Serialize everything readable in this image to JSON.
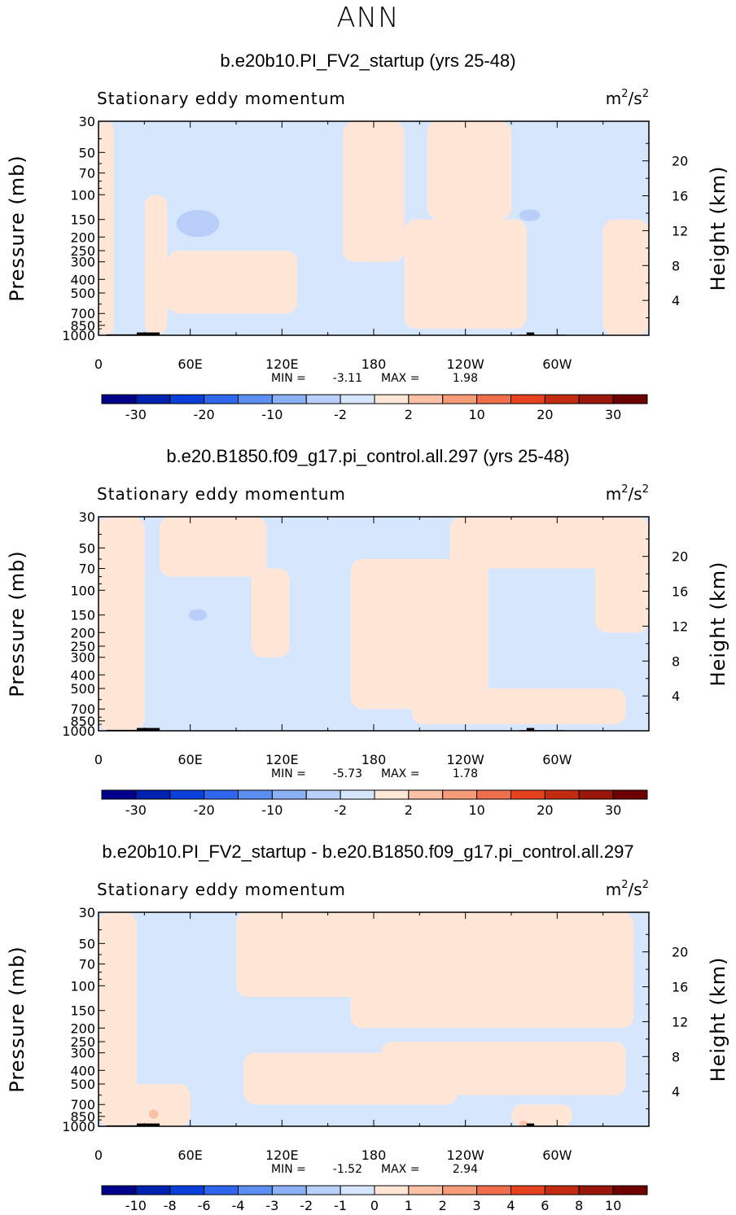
{
  "page_title": "ANN",
  "colors": {
    "land": "#000000",
    "frame": "#000000"
  },
  "chart_data": [
    {
      "type": "heatmap",
      "title": "b.e20b10.PI_FV2_startup (yrs 25-48)",
      "subtitle_left": "Stationary eddy momentum",
      "units": "m²/s²",
      "units_base": "m",
      "units_sup1": "2",
      "units_mid": "/s",
      "units_sup2": "2",
      "ylabel": "Pressure (mb)",
      "y2label": "Height (km)",
      "x_ticks": [
        "0",
        "60E",
        "120E",
        "180",
        "120W",
        "60W"
      ],
      "x_values": [
        0,
        60,
        120,
        180,
        240,
        300
      ],
      "xlim": [
        0,
        360
      ],
      "y_ticks": [
        "30",
        "50",
        "70",
        "100",
        "150",
        "200",
        "250",
        "300",
        "400",
        "500",
        "700",
        "850",
        "1000"
      ],
      "y_values": [
        30,
        50,
        70,
        100,
        150,
        200,
        250,
        300,
        400,
        500,
        700,
        850,
        1000
      ],
      "ylim": [
        1000,
        30
      ],
      "y_scale": "log",
      "y2_ticks": [
        "20",
        "16",
        "12",
        "8",
        "4"
      ],
      "y2_values": [
        20,
        16,
        12,
        8,
        4
      ],
      "min_label": "MIN =",
      "min_value": "-3.11",
      "max_label": "MAX =",
      "max_value": "1.98",
      "colorbar_labels": [
        "-30",
        "-20",
        "-10",
        "-2",
        "2",
        "10",
        "20",
        "30"
      ],
      "colorbar_colors": [
        "#00008b",
        "#0022b0",
        "#0a3fd9",
        "#2e66ee",
        "#5c8ff2",
        "#8bb1f5",
        "#b9cffa",
        "#d6e7fd",
        "#ffe6d6",
        "#fcc1a5",
        "#f79c79",
        "#f06e4b",
        "#e5421d",
        "#c22a12",
        "#9a160a",
        "#6e0000"
      ],
      "colorbar_levels": [
        -40,
        -30,
        -25,
        -20,
        -15,
        -10,
        -5,
        -2,
        0,
        2,
        5,
        10,
        15,
        20,
        25,
        30,
        40
      ],
      "blobs": [
        {
          "lon": 65,
          "p": 160,
          "value": -4,
          "rx": 14,
          "rp": 1.25
        },
        {
          "lon": 282,
          "p": 140,
          "value": -3,
          "rx": 7,
          "rp": 1.1
        }
      ],
      "fill_positive_regions": [
        {
          "lon": [
            0,
            10
          ],
          "p": [
            30,
            1000
          ]
        },
        {
          "lon": [
            30,
            45
          ],
          "p": [
            100,
            1000
          ]
        },
        {
          "lon": [
            45,
            130
          ],
          "p": [
            250,
            700
          ]
        },
        {
          "lon": [
            160,
            200
          ],
          "p": [
            30,
            300
          ]
        },
        {
          "lon": [
            200,
            280
          ],
          "p": [
            150,
            900
          ]
        },
        {
          "lon": [
            215,
            270
          ],
          "p": [
            30,
            150
          ]
        },
        {
          "lon": [
            330,
            360
          ],
          "p": [
            150,
            1000
          ]
        }
      ]
    },
    {
      "type": "heatmap",
      "title": "b.e20.B1850.f09_g17.pi_control.all.297 (yrs 25-48)",
      "subtitle_left": "Stationary eddy momentum",
      "units": "m²/s²",
      "units_base": "m",
      "units_sup1": "2",
      "units_mid": "/s",
      "units_sup2": "2",
      "ylabel": "Pressure (mb)",
      "y2label": "Height (km)",
      "x_ticks": [
        "0",
        "60E",
        "120E",
        "180",
        "120W",
        "60W"
      ],
      "x_values": [
        0,
        60,
        120,
        180,
        240,
        300
      ],
      "xlim": [
        0,
        360
      ],
      "y_ticks": [
        "30",
        "50",
        "70",
        "100",
        "150",
        "200",
        "250",
        "300",
        "400",
        "500",
        "700",
        "850",
        "1000"
      ],
      "y_values": [
        30,
        50,
        70,
        100,
        150,
        200,
        250,
        300,
        400,
        500,
        700,
        850,
        1000
      ],
      "ylim": [
        1000,
        30
      ],
      "y_scale": "log",
      "y2_ticks": [
        "20",
        "16",
        "12",
        "8",
        "4"
      ],
      "y2_values": [
        20,
        16,
        12,
        8,
        4
      ],
      "min_label": "MIN =",
      "min_value": "-5.73",
      "max_label": "MAX =",
      "max_value": "1.78",
      "colorbar_labels": [
        "-30",
        "-20",
        "-10",
        "-2",
        "2",
        "10",
        "20",
        "30"
      ],
      "colorbar_colors": [
        "#00008b",
        "#0022b0",
        "#0a3fd9",
        "#2e66ee",
        "#5c8ff2",
        "#8bb1f5",
        "#b9cffa",
        "#d6e7fd",
        "#ffe6d6",
        "#fcc1a5",
        "#f79c79",
        "#f06e4b",
        "#e5421d",
        "#c22a12",
        "#9a160a",
        "#6e0000"
      ],
      "colorbar_levels": [
        -40,
        -30,
        -25,
        -20,
        -15,
        -10,
        -5,
        -2,
        0,
        2,
        5,
        10,
        15,
        20,
        25,
        30,
        40
      ],
      "blobs": [
        {
          "lon": 65,
          "p": 150,
          "value": -3,
          "rx": 6,
          "rp": 1.1
        }
      ],
      "fill_positive_regions": [
        {
          "lon": [
            0,
            30
          ],
          "p": [
            30,
            1000
          ]
        },
        {
          "lon": [
            40,
            110
          ],
          "p": [
            30,
            80
          ]
        },
        {
          "lon": [
            100,
            125
          ],
          "p": [
            70,
            300
          ]
        },
        {
          "lon": [
            165,
            255
          ],
          "p": [
            60,
            700
          ]
        },
        {
          "lon": [
            230,
            340
          ],
          "p": [
            30,
            70
          ]
        },
        {
          "lon": [
            205,
            345
          ],
          "p": [
            500,
            900
          ]
        },
        {
          "lon": [
            325,
            360
          ],
          "p": [
            30,
            200
          ]
        }
      ]
    },
    {
      "type": "heatmap",
      "title": "b.e20b10.PI_FV2_startup - b.e20.B1850.f09_g17.pi_control.all.297",
      "subtitle_left": "Stationary eddy momentum",
      "units": "m²/s²",
      "units_base": "m",
      "units_sup1": "2",
      "units_mid": "/s",
      "units_sup2": "2",
      "ylabel": "Pressure (mb)",
      "y2label": "Height (km)",
      "x_ticks": [
        "0",
        "60E",
        "120E",
        "180",
        "120W",
        "60W"
      ],
      "x_values": [
        0,
        60,
        120,
        180,
        240,
        300
      ],
      "xlim": [
        0,
        360
      ],
      "y_ticks": [
        "30",
        "50",
        "70",
        "100",
        "150",
        "200",
        "250",
        "300",
        "400",
        "500",
        "700",
        "850",
        "1000"
      ],
      "y_values": [
        30,
        50,
        70,
        100,
        150,
        200,
        250,
        300,
        400,
        500,
        700,
        850,
        1000
      ],
      "ylim": [
        1000,
        30
      ],
      "y_scale": "log",
      "y2_ticks": [
        "20",
        "16",
        "12",
        "8",
        "4"
      ],
      "y2_values": [
        20,
        16,
        12,
        8,
        4
      ],
      "min_label": "MIN =",
      "min_value": "-1.52",
      "max_label": "MAX =",
      "max_value": "2.94",
      "colorbar_labels": [
        "-10",
        "-8",
        "-6",
        "-4",
        "-3",
        "-2",
        "-1",
        "0",
        "1",
        "2",
        "3",
        "4",
        "6",
        "8",
        "10"
      ],
      "colorbar_colors": [
        "#00008b",
        "#0022b0",
        "#0a3fd9",
        "#2e66ee",
        "#5c8ff2",
        "#8bb1f5",
        "#b9cffa",
        "#d6e7fd",
        "#ffe6d6",
        "#fcc1a5",
        "#f79c79",
        "#f06e4b",
        "#e5421d",
        "#c22a12",
        "#9a160a",
        "#6e0000"
      ],
      "colorbar_levels": [
        -12,
        -10,
        -8,
        -6,
        -4,
        -3,
        -2,
        -1,
        0,
        1,
        2,
        3,
        4,
        6,
        8,
        10,
        12
      ],
      "blobs": [
        {
          "lon": 36,
          "p": 820,
          "value": 1.5,
          "rx": 3,
          "rp": 1.08
        },
        {
          "lon": 278,
          "p": 950,
          "value": 1.5,
          "rx": 3,
          "rp": 1.04
        }
      ],
      "fill_positive_regions": [
        {
          "lon": [
            0,
            25
          ],
          "p": [
            30,
            1000
          ]
        },
        {
          "lon": [
            20,
            60
          ],
          "p": [
            500,
            1000
          ]
        },
        {
          "lon": [
            90,
            180
          ],
          "p": [
            30,
            120
          ]
        },
        {
          "lon": [
            95,
            235
          ],
          "p": [
            300,
            700
          ]
        },
        {
          "lon": [
            165,
            350
          ],
          "p": [
            30,
            200
          ]
        },
        {
          "lon": [
            185,
            345
          ],
          "p": [
            250,
            600
          ]
        },
        {
          "lon": [
            270,
            310
          ],
          "p": [
            700,
            1000
          ]
        }
      ]
    }
  ]
}
